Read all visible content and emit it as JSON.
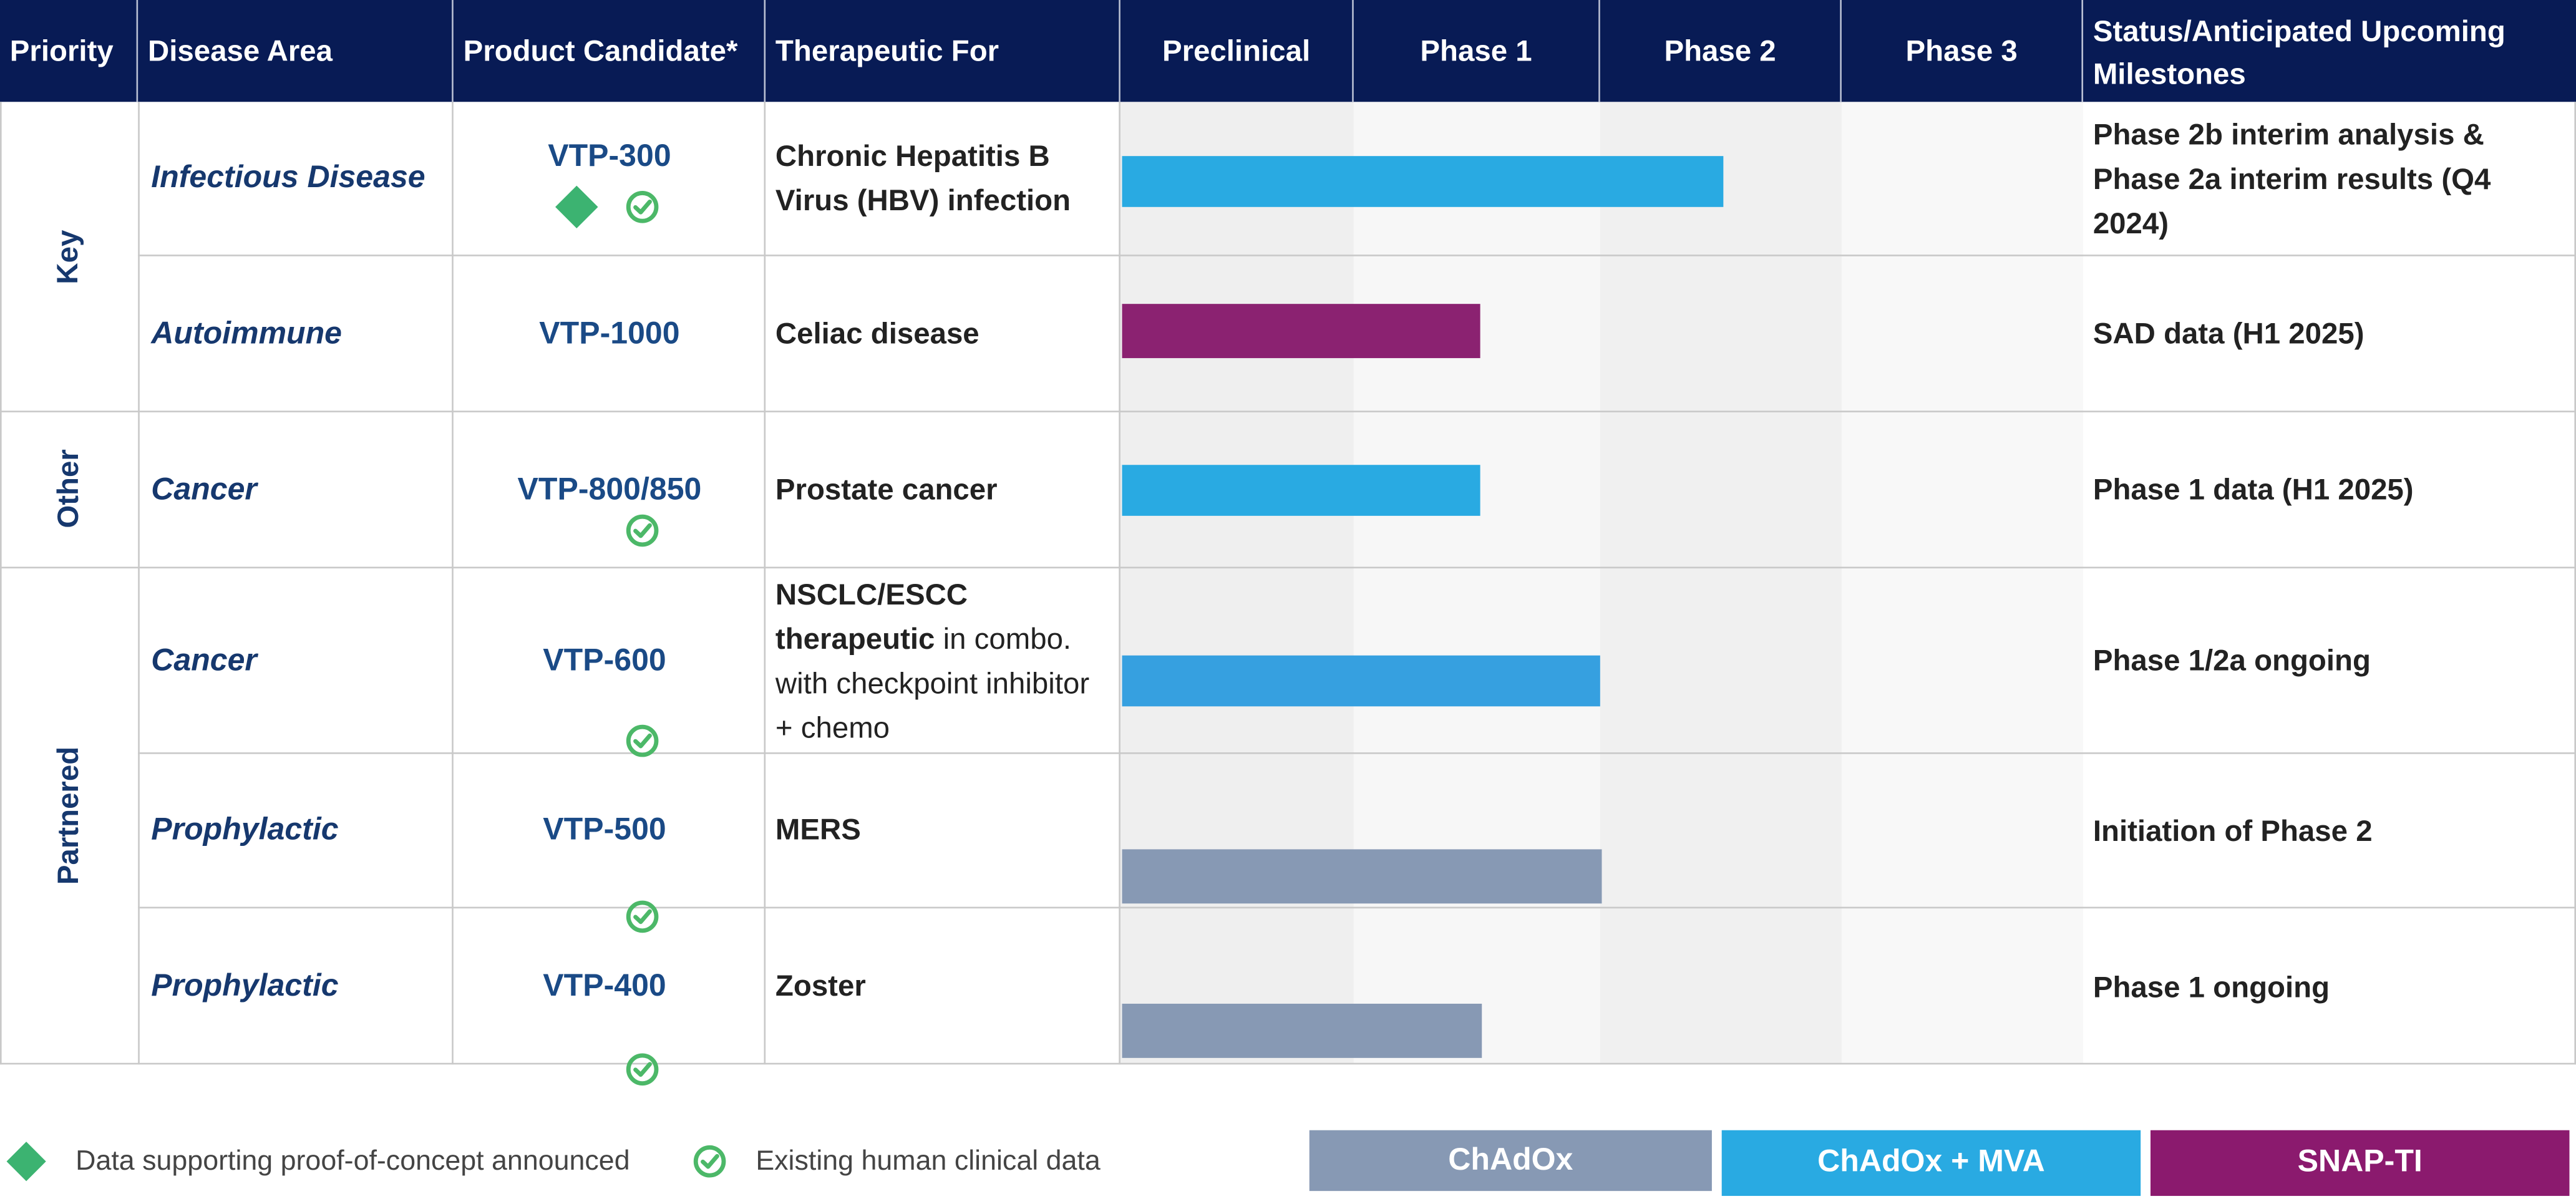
{
  "headers": {
    "priority": "Priority",
    "disease_area": "Disease Area",
    "product": "Product Candidate*",
    "therapeutic": "Therapeutic For",
    "preclinical": "Preclinical",
    "phase1": "Phase 1",
    "phase2": "Phase 2",
    "phase3": "Phase 3",
    "status": "Status/Anticipated Upcoming Milestones"
  },
  "priority_groups": [
    "Key",
    "Other",
    "Partnered"
  ],
  "rows": [
    {
      "disease": "Infectious Disease",
      "product": "VTP-300",
      "therapeutic": "Chronic Hepatitis B Virus (HBV) infection",
      "milestone": "Phase 2b interim analysis & Phase 2a interim results (Q4 2024)",
      "stage": "Phase 2",
      "platform": "ChAdOx + MVA",
      "proof_of_concept": true,
      "human_data": true
    },
    {
      "disease": "Autoimmune",
      "product": "VTP-1000",
      "therapeutic": "Celiac disease",
      "milestone": "SAD data (H1 2025)",
      "stage": "Phase 1",
      "platform": "SNAP-TI",
      "proof_of_concept": false,
      "human_data": false
    },
    {
      "disease": "Cancer",
      "product": "VTP-800/850",
      "therapeutic": "Prostate cancer",
      "milestone": "Phase 1 data (H1 2025)",
      "stage": "Phase 1",
      "platform": "ChAdOx + MVA",
      "proof_of_concept": false,
      "human_data": true
    },
    {
      "disease": "Cancer",
      "product": "VTP-600",
      "therapeutic_bold": "NSCLC/ESCC therapeutic",
      "therapeutic_rest": " in combo. with checkpoint inhibitor + chemo",
      "milestone": "Phase 1/2a ongoing",
      "stage": "Phase 1/2a",
      "platform": "ChAdOx + MVA",
      "proof_of_concept": false,
      "human_data": true
    },
    {
      "disease": "Prophylactic",
      "product": "VTP-500",
      "therapeutic": "MERS",
      "milestone": "Initiation of Phase 2",
      "stage": "Phase 1 complete",
      "platform": "ChAdOx",
      "proof_of_concept": false,
      "human_data": true
    },
    {
      "disease": "Prophylactic",
      "product": "VTP-400",
      "therapeutic": "Zoster",
      "milestone": "Phase 1 ongoing",
      "stage": "Phase 1",
      "platform": "ChAdOx",
      "proof_of_concept": false,
      "human_data": true
    }
  ],
  "legend": {
    "proof_of_concept": "Data supporting proof-of-concept announced",
    "human_data": "Existing human clinical data",
    "platforms": [
      "ChAdOx",
      "ChAdOx + MVA",
      "SNAP-TI"
    ]
  },
  "colors": {
    "header_bg": "#081b55",
    "chadox": "#8799b4",
    "chadox_mva": "#29aae2",
    "chadox_mva_600": "#36a0e0",
    "snap_ti": "#8b2271",
    "diamond": "#3cb371",
    "check": "#4cb868"
  }
}
